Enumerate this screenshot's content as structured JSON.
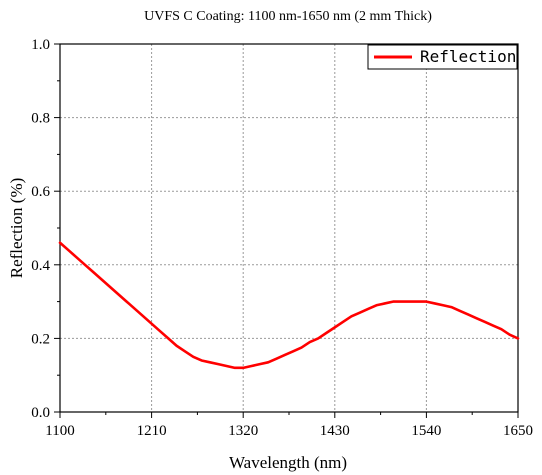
{
  "chart_data": {
    "type": "line",
    "title": "UVFS C Coating: 1100 nm-1650 nm (2 mm Thick)",
    "xlabel": "Wavelength (nm)",
    "ylabel": "Reflection (%)",
    "xlim": [
      1100,
      1650
    ],
    "ylim": [
      0.0,
      1.0
    ],
    "x_ticks": [
      "1100",
      "1210",
      "1320",
      "1430",
      "1540",
      "1650"
    ],
    "y_ticks": [
      "0.0",
      "0.2",
      "0.4",
      "0.6",
      "0.8",
      "1.0"
    ],
    "grid": true,
    "legend_position": "top-right",
    "series": [
      {
        "name": "Reflection",
        "color": "#ff0000",
        "x": [
          1100,
          1110,
          1120,
          1130,
          1140,
          1150,
          1160,
          1170,
          1180,
          1190,
          1200,
          1210,
          1220,
          1230,
          1240,
          1250,
          1260,
          1270,
          1280,
          1290,
          1300,
          1310,
          1320,
          1330,
          1340,
          1350,
          1360,
          1370,
          1380,
          1390,
          1400,
          1410,
          1420,
          1430,
          1440,
          1450,
          1460,
          1470,
          1480,
          1490,
          1500,
          1510,
          1520,
          1530,
          1540,
          1550,
          1560,
          1570,
          1580,
          1590,
          1600,
          1610,
          1620,
          1630,
          1640,
          1650
        ],
        "y": [
          0.46,
          0.44,
          0.42,
          0.4,
          0.38,
          0.36,
          0.34,
          0.32,
          0.3,
          0.28,
          0.26,
          0.24,
          0.22,
          0.2,
          0.18,
          0.165,
          0.15,
          0.14,
          0.135,
          0.13,
          0.125,
          0.12,
          0.12,
          0.125,
          0.13,
          0.135,
          0.145,
          0.155,
          0.165,
          0.175,
          0.19,
          0.2,
          0.215,
          0.23,
          0.245,
          0.26,
          0.27,
          0.28,
          0.29,
          0.295,
          0.3,
          0.3,
          0.3,
          0.3,
          0.3,
          0.295,
          0.29,
          0.285,
          0.275,
          0.265,
          0.255,
          0.245,
          0.235,
          0.225,
          0.21,
          0.2
        ]
      }
    ]
  }
}
